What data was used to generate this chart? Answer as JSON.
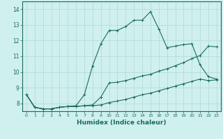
{
  "xlabel": "Humidex (Indice chaleur)",
  "background_color": "#cff0ee",
  "line_color": "#1a6b5a",
  "grid_color": "#b0d8d4",
  "xlim": [
    -0.5,
    23.5
  ],
  "ylim": [
    7.5,
    14.5
  ],
  "xticks": [
    0,
    1,
    2,
    3,
    4,
    5,
    6,
    7,
    8,
    9,
    10,
    11,
    12,
    13,
    14,
    15,
    16,
    17,
    18,
    19,
    20,
    21,
    22,
    23
  ],
  "yticks": [
    8,
    9,
    10,
    11,
    12,
    13,
    14
  ],
  "line1_x": [
    0,
    1,
    2,
    3,
    4,
    5,
    6,
    7,
    8,
    9,
    10,
    11,
    12,
    13,
    14,
    15,
    16,
    17,
    18,
    19,
    20,
    21,
    22,
    23
  ],
  "line1_y": [
    8.55,
    7.75,
    7.65,
    7.65,
    7.75,
    7.8,
    7.8,
    7.85,
    7.85,
    7.9,
    8.05,
    8.15,
    8.25,
    8.4,
    8.55,
    8.65,
    8.8,
    8.95,
    9.1,
    9.25,
    9.4,
    9.55,
    9.45,
    9.5
  ],
  "line2_x": [
    0,
    1,
    2,
    3,
    4,
    5,
    6,
    7,
    8,
    9,
    10,
    11,
    12,
    13,
    14,
    15,
    16,
    17,
    18,
    19,
    20,
    21,
    22,
    23
  ],
  "line2_y": [
    8.55,
    7.75,
    7.65,
    7.65,
    7.75,
    7.8,
    7.8,
    7.85,
    7.9,
    8.4,
    9.3,
    9.35,
    9.45,
    9.6,
    9.75,
    9.85,
    10.05,
    10.2,
    10.4,
    10.6,
    10.85,
    11.05,
    11.65,
    11.6
  ],
  "line3_x": [
    0,
    1,
    2,
    3,
    4,
    5,
    6,
    7,
    8,
    9,
    10,
    11,
    12,
    13,
    14,
    15,
    16,
    17,
    18,
    19,
    20,
    21,
    22,
    23
  ],
  "line3_y": [
    8.55,
    7.75,
    7.65,
    7.65,
    7.75,
    7.8,
    7.85,
    8.55,
    10.4,
    11.8,
    12.65,
    12.65,
    12.9,
    13.3,
    13.3,
    13.85,
    12.75,
    11.55,
    11.65,
    11.75,
    11.8,
    10.45,
    9.7,
    9.55
  ]
}
